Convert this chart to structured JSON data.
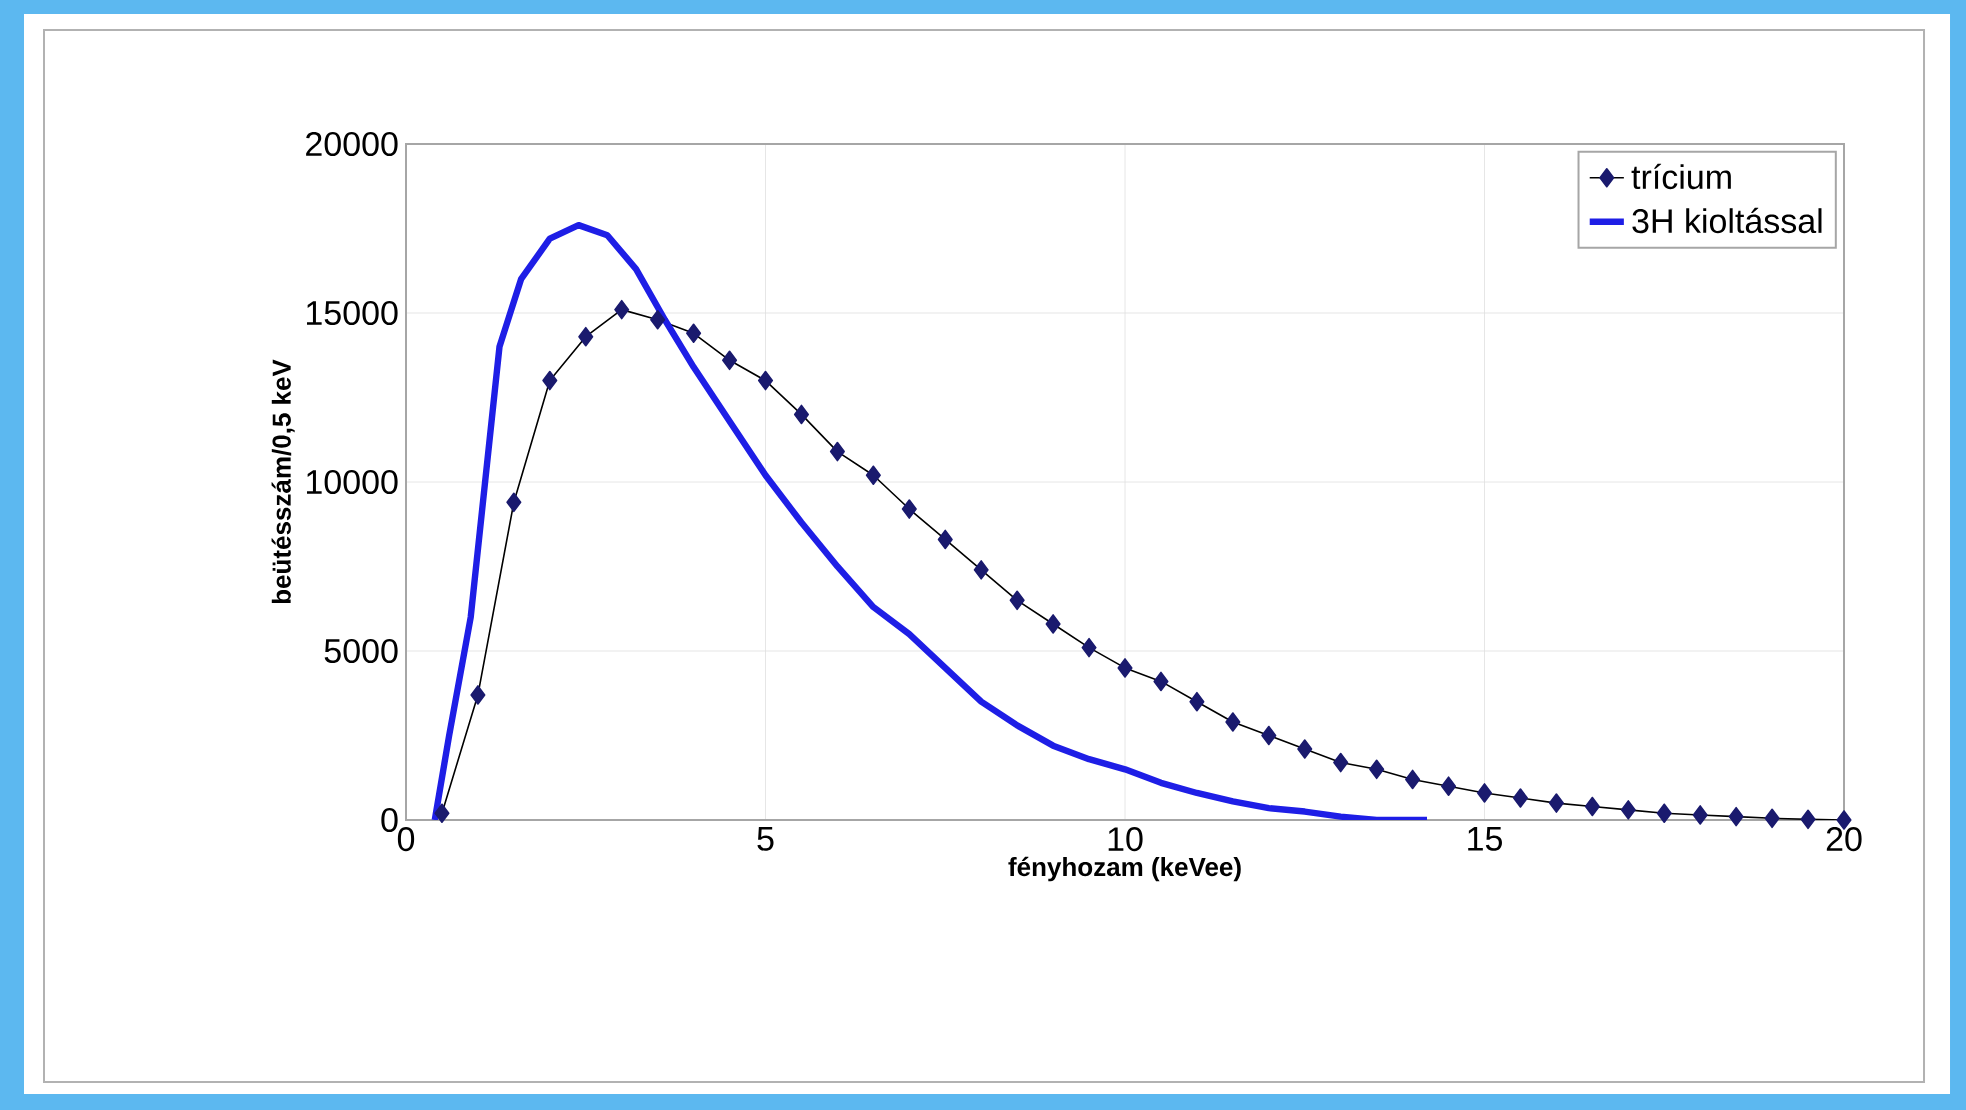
{
  "chart_data": {
    "type": "line",
    "xlabel": "fényhozam (keVee)",
    "ylabel": "beütésszám/0,5 keV",
    "xlim": [
      0,
      20
    ],
    "ylim": [
      0,
      20000
    ],
    "xticks": [
      0,
      5,
      10,
      15,
      20
    ],
    "yticks": [
      0,
      5000,
      10000,
      15000,
      20000
    ],
    "grid": true,
    "legend": "top right",
    "series": [
      {
        "name": "trícium",
        "color": "#1a1a6e",
        "marker": "diamond",
        "x": [
          0.5,
          1,
          1.5,
          2,
          2.5,
          3,
          3.5,
          4,
          4.5,
          5,
          5.5,
          6,
          6.5,
          7,
          7.5,
          8,
          8.5,
          9,
          9.5,
          10,
          10.5,
          11,
          11.5,
          12,
          12.5,
          13,
          13.5,
          14,
          14.5,
          15,
          15.5,
          16,
          16.5,
          17,
          17.5,
          18,
          18.5,
          19,
          19.5,
          20
        ],
        "values": [
          200,
          3700,
          9400,
          13000,
          14300,
          15100,
          14800,
          14400,
          13600,
          13000,
          12000,
          10900,
          10200,
          9200,
          8300,
          7400,
          6500,
          5800,
          5100,
          4500,
          4100,
          3500,
          2900,
          2500,
          2100,
          1700,
          1500,
          1200,
          1000,
          800,
          650,
          500,
          400,
          300,
          200,
          150,
          100,
          50,
          20,
          0
        ]
      },
      {
        "name": "3H kioltással",
        "color": "#1e1ee6",
        "marker": "none",
        "x": [
          0.4,
          0.6,
          0.9,
          1.1,
          1.3,
          1.6,
          2,
          2.4,
          2.8,
          3.2,
          3.6,
          4,
          4.5,
          5,
          5.5,
          6,
          6.5,
          7,
          7.5,
          8,
          8.5,
          9,
          9.5,
          10,
          10.5,
          11,
          11.5,
          12,
          12.5,
          13,
          13.5,
          14.2
        ],
        "values": [
          0,
          2500,
          6000,
          10000,
          14000,
          16000,
          17200,
          17600,
          17300,
          16300,
          14800,
          13400,
          11800,
          10200,
          8800,
          7500,
          6300,
          5500,
          4500,
          3500,
          2800,
          2200,
          1800,
          1500,
          1100,
          800,
          550,
          350,
          250,
          100,
          0,
          0
        ]
      }
    ]
  }
}
